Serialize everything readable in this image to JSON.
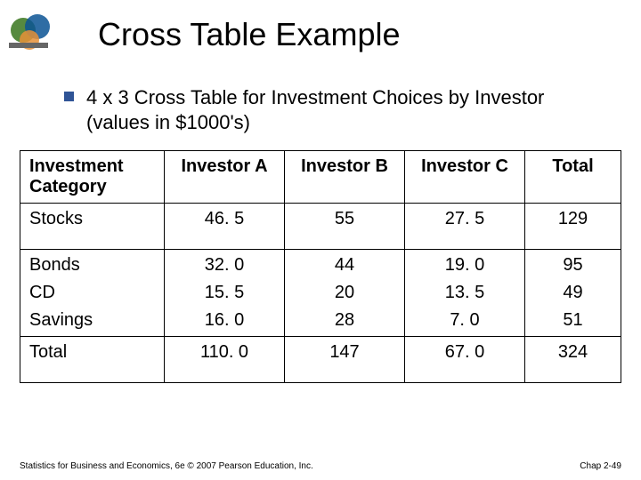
{
  "title": "Cross Table Example",
  "bullet": "4 x 3 Cross Table for Investment Choices by Investor (values in $1000's)",
  "table": {
    "columns": [
      "Investment Category",
      "Investor A",
      "Investor B",
      "Investor C",
      "Total"
    ],
    "rows": [
      {
        "cat": "Stocks",
        "a": "46. 5",
        "b": "55",
        "c": "27. 5",
        "t": "129"
      },
      {
        "cat": "Bonds",
        "a": "32. 0",
        "b": "44",
        "c": "19. 0",
        "t": "95"
      },
      {
        "cat": "CD",
        "a": "15. 5",
        "b": "20",
        "c": "13. 5",
        "t": "49"
      },
      {
        "cat": "Savings",
        "a": "16. 0",
        "b": "28",
        "c": "7. 0",
        "t": "51"
      },
      {
        "cat": "Total",
        "a": "110. 0",
        "b": "147",
        "c": "67. 0",
        "t": "324"
      }
    ]
  },
  "footer_left": "Statistics for Business and Economics, 6e © 2007 Pearson Education, Inc.",
  "footer_right": "Chap 2-49",
  "colors": {
    "bullet_square": "#2f5496",
    "border": "#000000",
    "background": "#ffffff"
  },
  "typography": {
    "title_fontsize": 36,
    "bullet_fontsize": 22,
    "cell_fontsize": 20,
    "footer_fontsize": 10
  }
}
